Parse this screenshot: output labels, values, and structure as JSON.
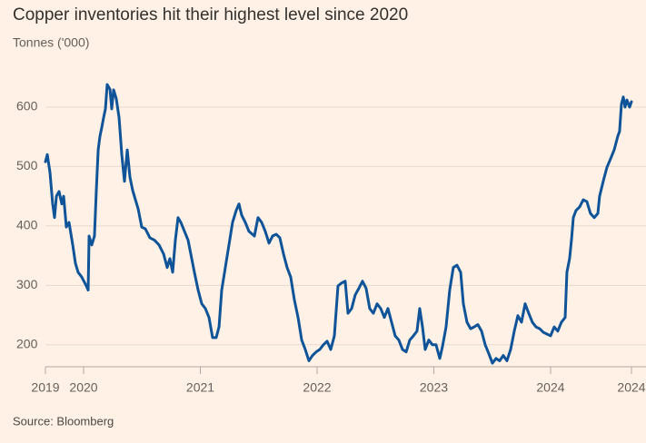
{
  "chart_data": {
    "type": "line",
    "title": "Copper inventories hit their highest level since 2020",
    "subtitle": "Tonnes ('000)",
    "source": "Source: Bloomberg",
    "x": [
      2019.673,
      2019.689,
      2019.712,
      2019.735,
      2019.751,
      2019.767,
      2019.79,
      2019.813,
      2019.829,
      2019.852,
      2019.875,
      2019.907,
      2019.93,
      2019.953,
      2019.984,
      2020.023,
      2020.039,
      2020.047,
      2020.07,
      2020.093,
      2020.109,
      2020.125,
      2020.14,
      2020.156,
      2020.171,
      2020.187,
      2020.202,
      2020.226,
      2020.241,
      2020.257,
      2020.28,
      2020.304,
      2020.327,
      2020.35,
      2020.374,
      2020.397,
      2020.42,
      2020.444,
      2020.467,
      2020.498,
      2020.529,
      2020.568,
      2020.607,
      2020.646,
      2020.685,
      2020.716,
      2020.739,
      2020.763,
      2020.786,
      2020.809,
      2020.833,
      2020.864,
      2020.895,
      2020.918,
      2020.949,
      2020.981,
      2021.012,
      2021.043,
      2021.074,
      2021.105,
      2021.136,
      2021.16,
      2021.183,
      2021.214,
      2021.245,
      2021.276,
      2021.307,
      2021.331,
      2021.354,
      2021.385,
      2021.416,
      2021.463,
      2021.494,
      2021.525,
      2021.556,
      2021.588,
      2021.619,
      2021.65,
      2021.681,
      2021.712,
      2021.743,
      2021.774,
      2021.805,
      2021.837,
      2021.868,
      2021.899,
      2021.93,
      2021.961,
      2021.992,
      2022.023,
      2022.054,
      2022.086,
      2022.117,
      2022.148,
      2022.179,
      2022.21,
      2022.241,
      2022.265,
      2022.296,
      2022.327,
      2022.358,
      2022.389,
      2022.42,
      2022.451,
      2022.482,
      2022.514,
      2022.545,
      2022.576,
      2022.607,
      2022.638,
      2022.669,
      2022.7,
      2022.732,
      2022.763,
      2022.794,
      2022.825,
      2022.856,
      2022.879,
      2022.903,
      2022.926,
      2022.957,
      2022.988,
      2023.019,
      2023.051,
      2023.074,
      2023.105,
      2023.136,
      2023.167,
      2023.198,
      2023.23,
      2023.253,
      2023.284,
      2023.315,
      2023.346,
      2023.377,
      2023.409,
      2023.44,
      2023.471,
      2023.502,
      2023.533,
      2023.564,
      2023.595,
      2023.626,
      2023.658,
      2023.689,
      2023.72,
      2023.751,
      2023.782,
      2023.813,
      2023.844,
      2023.875,
      2023.907,
      2023.938,
      2023.969,
      2024.0,
      2024.031,
      2024.062,
      2024.093,
      2024.125,
      2024.14,
      2024.163,
      2024.179,
      2024.195,
      2024.218,
      2024.249,
      2024.28,
      2024.311,
      2024.342,
      2024.374,
      2024.405,
      2024.42,
      2024.451,
      2024.482,
      2024.514,
      2024.545,
      2024.576,
      2024.591,
      2024.607,
      2024.623,
      2024.638,
      2024.654,
      2024.677,
      2024.693
    ],
    "series": [
      {
        "name": "Copper inventories",
        "color": "#0f5499",
        "values": [
          508,
          520,
          490,
          437,
          414,
          450,
          458,
          437,
          450,
          398,
          406,
          368,
          337,
          322,
          314,
          299,
          292,
          383,
          368,
          383,
          460,
          528,
          551,
          566,
          582,
          597,
          638,
          630,
          597,
          629,
          614,
          582,
          520,
          475,
          528,
          482,
          460,
          444,
          429,
          398,
          395,
          380,
          376,
          368,
          353,
          330,
          345,
          322,
          376,
          414,
          406,
          391,
          376,
          353,
          322,
          292,
          269,
          261,
          246,
          212,
          212,
          230,
          292,
          330,
          368,
          406,
          426,
          437,
          418,
          406,
          391,
          383,
          414,
          406,
          391,
          371,
          383,
          386,
          380,
          353,
          330,
          314,
          276,
          246,
          208,
          192,
          173,
          182,
          188,
          192,
          200,
          206,
          192,
          215,
          299,
          304,
          307,
          253,
          261,
          284,
          295,
          307,
          295,
          261,
          253,
          269,
          261,
          246,
          261,
          238,
          215,
          208,
          192,
          188,
          208,
          215,
          223,
          261,
          230,
          192,
          208,
          200,
          200,
          177,
          197,
          230,
          292,
          330,
          334,
          322,
          269,
          238,
          227,
          230,
          234,
          223,
          200,
          185,
          169,
          177,
          173,
          182,
          173,
          192,
          223,
          249,
          238,
          269,
          253,
          238,
          230,
          227,
          221,
          218,
          215,
          230,
          223,
          238,
          246,
          322,
          345,
          376,
          414,
          426,
          432,
          444,
          441,
          421,
          414,
          421,
          450,
          475,
          498,
          513,
          528,
          551,
          559,
          605,
          617,
          600,
          612,
          600,
          609
        ]
      }
    ],
    "xlim": [
      2019.673,
      2024.693
    ],
    "xticks": [
      {
        "value": 2019.673,
        "label": "2019"
      },
      2020,
      2021,
      2022,
      2023,
      2024,
      {
        "value": 2024.693,
        "label": "2024"
      }
    ],
    "ylim": [
      163,
      680
    ],
    "yticks": [
      200,
      300,
      400,
      500,
      600
    ],
    "grid": true
  }
}
